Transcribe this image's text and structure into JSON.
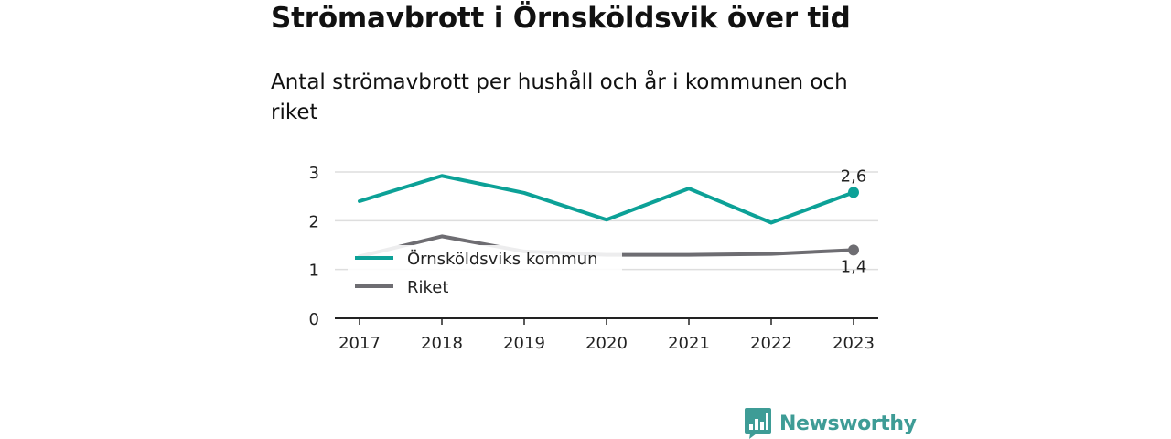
{
  "title": "Strömavbrott i Örnsköldsvik över tid",
  "subtitle": "Antal strömavbrott per hushåll och år i kommunen och riket",
  "brand": {
    "name": "Newsworthy",
    "color": "#3e9c96"
  },
  "chart_data": {
    "type": "line",
    "title": "Strömavbrott i Örnsköldsvik över tid",
    "subtitle": "Antal strömavbrott per hushåll och år i kommunen och riket",
    "categories": [
      "2017",
      "2018",
      "2019",
      "2020",
      "2021",
      "2022",
      "2023"
    ],
    "yticks": [
      "0",
      "1",
      "2",
      "3"
    ],
    "ylim": [
      0,
      3
    ],
    "grid": true,
    "legend_position": "left",
    "series": [
      {
        "name": "Örnsköldsviks kommun",
        "color": "#0ca197",
        "values": [
          2.4,
          2.92,
          2.57,
          2.02,
          2.66,
          1.96,
          2.58
        ],
        "end_label": "2,6"
      },
      {
        "name": "Riket",
        "color": "#6e6d72",
        "values": [
          1.27,
          1.68,
          1.37,
          1.3,
          1.3,
          1.32,
          1.4
        ],
        "end_label": "1,4"
      }
    ]
  }
}
